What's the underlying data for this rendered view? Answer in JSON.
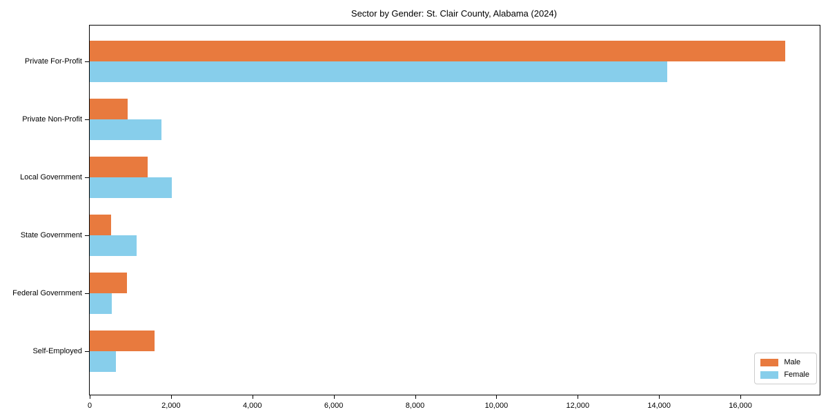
{
  "chart_data": {
    "type": "bar",
    "orientation": "horizontal",
    "title": "Sector by Gender: St. Clair County, Alabama (2024)",
    "categories": [
      "Private For-Profit",
      "Private Non-Profit",
      "Local Government",
      "State Government",
      "Federal Government",
      "Self-Employed"
    ],
    "series": [
      {
        "name": "Male",
        "color": "#e87a3e",
        "values": [
          17100,
          930,
          1430,
          530,
          920,
          1600
        ]
      },
      {
        "name": "Female",
        "color": "#87ceeb",
        "values": [
          14200,
          1760,
          2020,
          1150,
          540,
          650
        ]
      }
    ],
    "xlabel": "",
    "ylabel": "",
    "xlim": [
      0,
      17950
    ],
    "xticks": [
      0,
      2000,
      4000,
      6000,
      8000,
      10000,
      12000,
      14000,
      16000
    ],
    "xtick_labels": [
      "0",
      "2,000",
      "4,000",
      "6,000",
      "8,000",
      "10,000",
      "12,000",
      "14,000",
      "16,000"
    ],
    "grid": false,
    "legend_position": "lower right"
  }
}
